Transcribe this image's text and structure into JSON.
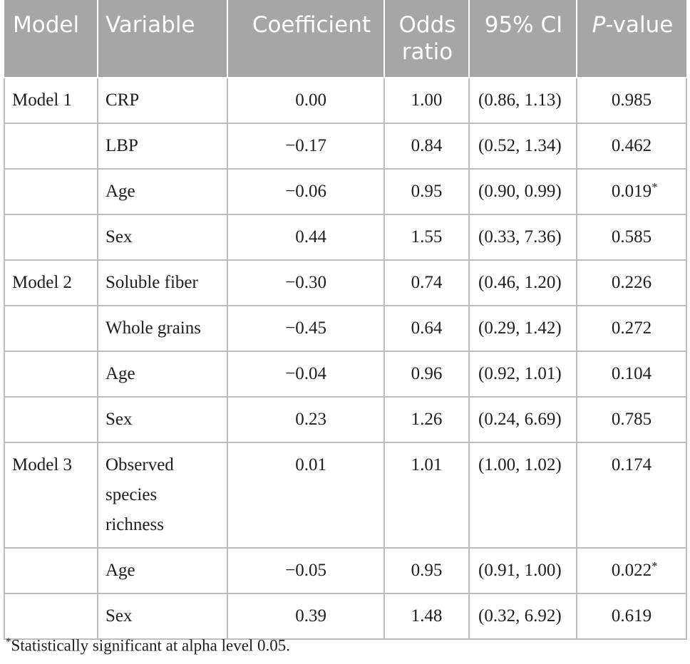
{
  "table": {
    "headers": {
      "model": "Model",
      "variable": "Variable",
      "coefficient": "Coefficient",
      "odds_ratio": "Odds ratio",
      "ci": "95% CI",
      "p_value_italic": "P",
      "p_value_rest": "-value"
    },
    "rows": [
      {
        "model": "Model 1",
        "variable": "CRP",
        "coefficient": "0.00",
        "odds_ratio": "1.00",
        "ci": "(0.86, 1.13)",
        "p": "0.985",
        "mark": ""
      },
      {
        "model": "",
        "variable": "LBP",
        "coefficient": "−0.17",
        "odds_ratio": "0.84",
        "ci": "(0.52, 1.34)",
        "p": "0.462",
        "mark": ""
      },
      {
        "model": "",
        "variable": "Age",
        "coefficient": "−0.06",
        "odds_ratio": "0.95",
        "ci": "(0.90, 0.99)",
        "p": "0.019",
        "mark": "*"
      },
      {
        "model": "",
        "variable": "Sex",
        "coefficient": "0.44",
        "odds_ratio": "1.55",
        "ci": "(0.33, 7.36)",
        "p": "0.585",
        "mark": ""
      },
      {
        "model": "Model 2",
        "variable": "Soluble fiber",
        "coefficient": "−0.30",
        "odds_ratio": "0.74",
        "ci": "(0.46, 1.20)",
        "p": "0.226",
        "mark": ""
      },
      {
        "model": "",
        "variable": "Whole grains",
        "coefficient": "−0.45",
        "odds_ratio": "0.64",
        "ci": "(0.29, 1.42)",
        "p": "0.272",
        "mark": ""
      },
      {
        "model": "",
        "variable": "Age",
        "coefficient": "−0.04",
        "odds_ratio": "0.96",
        "ci": "(0.92, 1.01)",
        "p": "0.104",
        "mark": ""
      },
      {
        "model": "",
        "variable": "Sex",
        "coefficient": "0.23",
        "odds_ratio": "1.26",
        "ci": "(0.24, 6.69)",
        "p": "0.785",
        "mark": ""
      },
      {
        "model": "Model 3",
        "variable": "Observed species richness",
        "coefficient": "0.01",
        "odds_ratio": "1.01",
        "ci": "(1.00, 1.02)",
        "p": "0.174",
        "mark": ""
      },
      {
        "model": "",
        "variable": "Age",
        "coefficient": "−0.05",
        "odds_ratio": "0.95",
        "ci": "(0.91, 1.00)",
        "p": "0.022",
        "mark": "*"
      },
      {
        "model": "",
        "variable": "Sex",
        "coefficient": "0.39",
        "odds_ratio": "1.48",
        "ci": "(0.32, 6.92)",
        "p": "0.619",
        "mark": ""
      }
    ]
  },
  "footnote": {
    "mark": "*",
    "text": "Statistically significant at alpha level 0.05."
  }
}
